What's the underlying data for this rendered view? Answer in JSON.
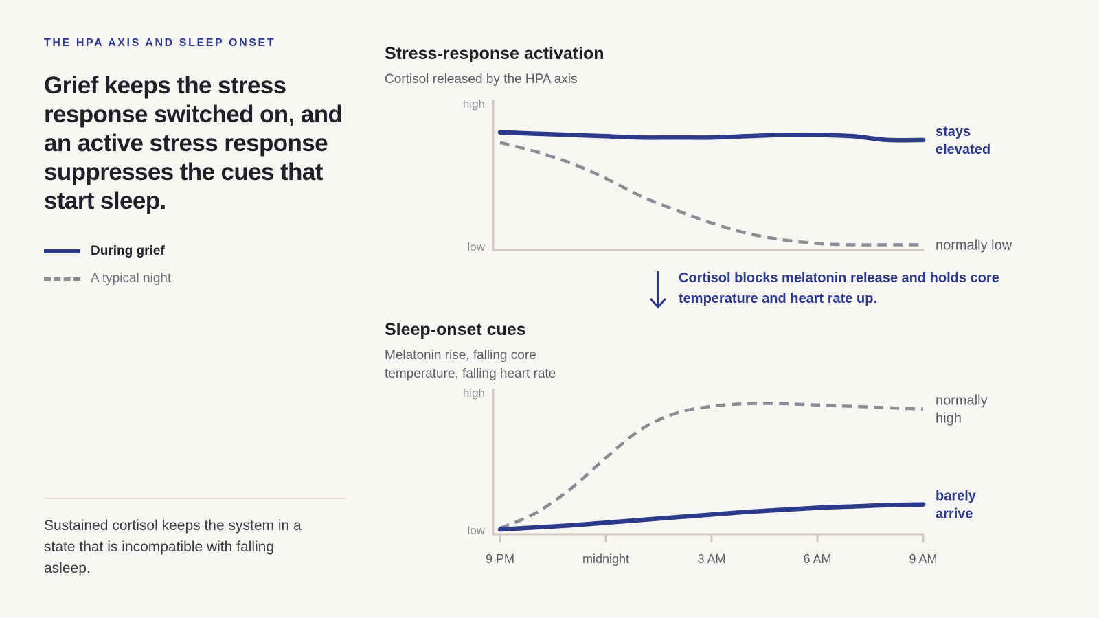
{
  "eyebrow": "THE HPA AXIS AND SLEEP ONSET",
  "headline": "Grief keeps the stress response switched on, and an active stress response suppresses the cues that start sleep.",
  "legend": {
    "grief": "During grief",
    "typical": "A typical night"
  },
  "footnote": "Sustained cortisol keeps the system in a state that is incompatible with falling asleep.",
  "callout": "Cortisol blocks melatonin release and holds core temperature and heart rate up.",
  "colors": {
    "grief": "#2d3a8c",
    "typical": "#8b8d95",
    "axis": "#cfcac4",
    "background": "#f7f6f3"
  },
  "chart_data": [
    {
      "type": "line",
      "title": "Stress-response activation",
      "subtitle": "Cortisol released by the HPA axis",
      "y_ticks": [
        "high",
        "low"
      ],
      "ylim": [
        0,
        1
      ],
      "x": [
        0,
        1,
        2,
        3,
        4,
        5,
        6,
        7,
        8,
        9,
        10,
        11,
        12
      ],
      "series": [
        {
          "name": "During grief",
          "style": "solid",
          "end_label": "stays elevated",
          "values": [
            0.91,
            0.9,
            0.89,
            0.88,
            0.87,
            0.87,
            0.87,
            0.88,
            0.89,
            0.89,
            0.88,
            0.85,
            0.85
          ]
        },
        {
          "name": "A typical night",
          "style": "dashed",
          "end_label": "normally low",
          "values": [
            0.83,
            0.76,
            0.67,
            0.55,
            0.41,
            0.3,
            0.2,
            0.12,
            0.07,
            0.04,
            0.03,
            0.03,
            0.03
          ]
        }
      ]
    },
    {
      "type": "line",
      "title": "Sleep-onset cues",
      "subtitle": "Melatonin rise, falling core temperature, falling heart rate",
      "y_ticks": [
        "high",
        "low"
      ],
      "x_ticks": [
        "9 PM",
        "midnight",
        "3 AM",
        "6 AM",
        "9 AM"
      ],
      "ylim": [
        0,
        1
      ],
      "x": [
        0,
        1,
        2,
        3,
        4,
        5,
        6,
        7,
        8,
        9,
        10,
        11,
        12
      ],
      "series": [
        {
          "name": "A typical night",
          "style": "dashed",
          "end_label": "normally high",
          "values": [
            0.03,
            0.14,
            0.32,
            0.55,
            0.76,
            0.88,
            0.93,
            0.95,
            0.95,
            0.94,
            0.93,
            0.92,
            0.91
          ]
        },
        {
          "name": "During grief",
          "style": "solid",
          "end_label": "barely arrive",
          "values": [
            0.02,
            0.035,
            0.05,
            0.07,
            0.09,
            0.11,
            0.13,
            0.15,
            0.165,
            0.18,
            0.19,
            0.2,
            0.205
          ]
        }
      ]
    }
  ]
}
